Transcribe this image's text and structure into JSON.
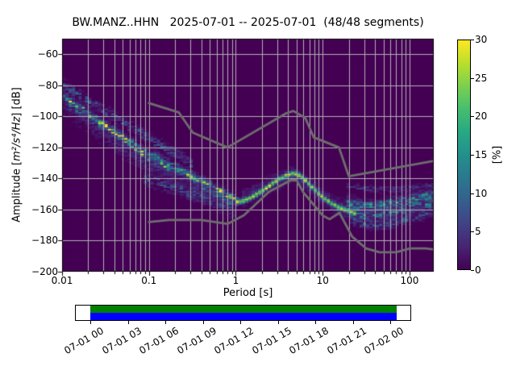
{
  "chart_data": {
    "type": "heatmap",
    "title": "BW.MANZ..HHN   2025-07-01 -- 2025-07-01  (48/48 segments)",
    "station_id": "BW.MANZ..HHN",
    "date_range": "2025-07-01 -- 2025-07-01",
    "segments": "48/48 segments",
    "xlabel": "Period [s]",
    "ylabel": "Amplitude [m²/s⁴/Hz] [dB]",
    "ylabel_parts": {
      "prefix": "Amplitude [",
      "math": "m²/s⁴/Hz",
      "suffix": "] [dB]"
    },
    "xscale": "log",
    "xlim": [
      0.01,
      190
    ],
    "ylim": [
      -200,
      -50
    ],
    "grid": true,
    "background_pct": 0,
    "x_ticks": [
      {
        "v": 0.01,
        "label": "0.01"
      },
      {
        "v": 0.1,
        "label": "0.1"
      },
      {
        "v": 1,
        "label": "1"
      },
      {
        "v": 10,
        "label": "10"
      },
      {
        "v": 100,
        "label": "100"
      }
    ],
    "y_ticks": [
      {
        "v": -200,
        "label": "−200"
      },
      {
        "v": -180,
        "label": "−180"
      },
      {
        "v": -160,
        "label": "−160"
      },
      {
        "v": -140,
        "label": "−140"
      },
      {
        "v": -120,
        "label": "−120"
      },
      {
        "v": -100,
        "label": "−100"
      },
      {
        "v": -80,
        "label": "−80"
      },
      {
        "v": -60,
        "label": "−60"
      }
    ],
    "colorbar": {
      "label": "[%]",
      "min": 0,
      "max": 30,
      "colormap": "viridis",
      "ticks": [
        {
          "v": 0,
          "label": "0"
        },
        {
          "v": 5,
          "label": "5"
        },
        {
          "v": 10,
          "label": "10"
        },
        {
          "v": 15,
          "label": "15"
        },
        {
          "v": 20,
          "label": "20"
        },
        {
          "v": 25,
          "label": "25"
        },
        {
          "v": 30,
          "label": "30"
        }
      ]
    },
    "histogram": {
      "period_bins_per_octave": 8,
      "db_bin_width": 1,
      "bands": [
        {
          "name": "short-period-upper-train",
          "sigma": 2.2,
          "peak_pct": 7,
          "jitter": 0.9,
          "points": [
            [
              0.01,
              -79
            ],
            [
              0.02,
              -90
            ],
            [
              0.045,
              -102
            ],
            [
              0.1,
              -114
            ],
            [
              0.18,
              -122
            ],
            [
              0.32,
              -131
            ]
          ]
        },
        {
          "name": "short-period-main-train",
          "sigma": 1.6,
          "peak_pct": 24,
          "jitter": 0.85,
          "points": [
            [
              0.01,
              -86
            ],
            [
              0.02,
              -98.5
            ],
            [
              0.05,
              -113.5
            ],
            [
              0.09,
              -125
            ],
            [
              0.15,
              -131.5
            ],
            [
              0.25,
              -136
            ],
            [
              0.4,
              -141
            ],
            [
              0.7,
              -149
            ],
            [
              1.1,
              -155.5
            ]
          ]
        },
        {
          "name": "short-period-second-train",
          "sigma": 2.2,
          "peak_pct": 11,
          "jitter": 0.9,
          "points": [
            [
              0.012,
              -92
            ],
            [
              0.03,
              -106
            ],
            [
              0.08,
              -121
            ],
            [
              0.2,
              -133
            ],
            [
              0.5,
              -147
            ],
            [
              0.9,
              -156
            ]
          ]
        },
        {
          "name": "short-period-low-train",
          "sigma": 2.5,
          "peak_pct": 7,
          "jitter": 0.9,
          "points": [
            [
              0.09,
              -140
            ],
            [
              0.2,
              -146
            ],
            [
              0.4,
              -152
            ],
            [
              0.8,
              -157
            ]
          ]
        },
        {
          "name": "short-period-haze",
          "sigma": 6.0,
          "peak_pct": 3.5,
          "jitter": 0.7,
          "points": [
            [
              0.01,
              -88
            ],
            [
              0.05,
              -118
            ],
            [
              0.15,
              -135
            ],
            [
              0.5,
              -150
            ],
            [
              1,
              -158
            ]
          ]
        },
        {
          "name": "microseism-ridge",
          "sigma": 1.1,
          "peak_pct": 30,
          "jitter": 0.25,
          "points": [
            [
              0.95,
              -155.5
            ],
            [
              1.3,
              -154
            ],
            [
              1.7,
              -150.5
            ],
            [
              2.2,
              -146.5
            ],
            [
              3,
              -141
            ],
            [
              4,
              -137.5
            ],
            [
              4.7,
              -136.5
            ],
            [
              5.5,
              -138
            ],
            [
              6.5,
              -141.5
            ],
            [
              8,
              -147
            ],
            [
              10,
              -152
            ],
            [
              13,
              -156.5
            ],
            [
              16,
              -159
            ],
            [
              20,
              -161
            ],
            [
              24,
              -162.5
            ]
          ]
        },
        {
          "name": "microseism-haze",
          "sigma": 3.5,
          "peak_pct": 5,
          "jitter": 0.6,
          "points": [
            [
              1.2,
              -153
            ],
            [
              2,
              -147
            ],
            [
              4.5,
              -137
            ],
            [
              8,
              -147
            ],
            [
              12,
              -155
            ],
            [
              20,
              -161
            ]
          ]
        },
        {
          "name": "long-period-fan-top",
          "sigma": 1.4,
          "peak_pct": 4.5,
          "jitter": 0.8,
          "points": [
            [
              18,
              -145
            ],
            [
              40,
              -147
            ],
            [
              80,
              -147
            ],
            [
              120,
              -146
            ],
            [
              190,
              -144
            ]
          ]
        },
        {
          "name": "long-period-fan-bright",
          "sigma": 2.2,
          "peak_pct": 15,
          "jitter": 0.75,
          "points": [
            [
              18,
              -155
            ],
            [
              30,
              -158
            ],
            [
              50,
              -157
            ],
            [
              80,
              -155
            ],
            [
              120,
              -153
            ],
            [
              190,
              -150.5
            ]
          ]
        },
        {
          "name": "long-period-fan-mid",
          "sigma": 2.0,
          "peak_pct": 12,
          "jitter": 0.8,
          "points": [
            [
              20,
              -161
            ],
            [
              30,
              -164
            ],
            [
              50,
              -163
            ],
            [
              80,
              -160.5
            ],
            [
              120,
              -158
            ],
            [
              190,
              -156
            ]
          ]
        },
        {
          "name": "long-period-fan-low",
          "sigma": 2.0,
          "peak_pct": 8,
          "jitter": 0.85,
          "points": [
            [
              20,
              -166
            ],
            [
              32,
              -169.5
            ],
            [
              50,
              -170
            ],
            [
              80,
              -167
            ],
            [
              120,
              -164.5
            ],
            [
              190,
              -161.5
            ]
          ]
        },
        {
          "name": "long-period-haze",
          "sigma": 5.5,
          "peak_pct": 3.5,
          "jitter": 0.6,
          "points": [
            [
              18,
              -158
            ],
            [
              40,
              -163
            ],
            [
              100,
              -159
            ],
            [
              190,
              -155
            ]
          ]
        }
      ]
    },
    "noise_models": {
      "color": "#6e6e6e",
      "nhnm": [
        [
          0.1,
          -91.5
        ],
        [
          0.22,
          -97.4
        ],
        [
          0.32,
          -110.5
        ],
        [
          0.8,
          -120.0
        ],
        [
          3.8,
          -98.0
        ],
        [
          4.6,
          -96.5
        ],
        [
          6.3,
          -101.0
        ],
        [
          7.9,
          -113.5
        ],
        [
          15.4,
          -120.0
        ],
        [
          20.0,
          -138.5
        ],
        [
          190.0,
          -128.7
        ]
      ],
      "nlnm": [
        [
          0.1,
          -168.0
        ],
        [
          0.17,
          -166.7
        ],
        [
          0.4,
          -166.7
        ],
        [
          0.8,
          -169.2
        ],
        [
          1.24,
          -163.7
        ],
        [
          2.4,
          -148.6
        ],
        [
          4.3,
          -141.1
        ],
        [
          5.0,
          -141.1
        ],
        [
          6.0,
          -149.0
        ],
        [
          10.0,
          -163.8
        ],
        [
          12.0,
          -166.2
        ],
        [
          15.6,
          -162.1
        ],
        [
          21.9,
          -177.5
        ],
        [
          31.6,
          -185.0
        ],
        [
          45.0,
          -187.5
        ],
        [
          70.0,
          -187.5
        ],
        [
          101.0,
          -185.0
        ],
        [
          154.0,
          -185.0
        ],
        [
          190.0,
          -185.7
        ]
      ]
    }
  },
  "timeline": {
    "axis_start_hour": 0,
    "axis_end_hour": 24,
    "tick_step_hours": 3,
    "coverage_start_hour": 0,
    "coverage_end_hour": 24.5,
    "green_bar_color": "#008000",
    "blue_bar_color": "#0000ff",
    "tick_labels": [
      {
        "hour": 0,
        "label": "07-01 00"
      },
      {
        "hour": 3,
        "label": "07-01 03"
      },
      {
        "hour": 6,
        "label": "07-01 06"
      },
      {
        "hour": 9,
        "label": "07-01 09"
      },
      {
        "hour": 12,
        "label": "07-01 12"
      },
      {
        "hour": 15,
        "label": "07-01 15"
      },
      {
        "hour": 18,
        "label": "07-01 18"
      },
      {
        "hour": 21,
        "label": "07-01 21"
      },
      {
        "hour": 24,
        "label": "07-02 00"
      }
    ]
  }
}
